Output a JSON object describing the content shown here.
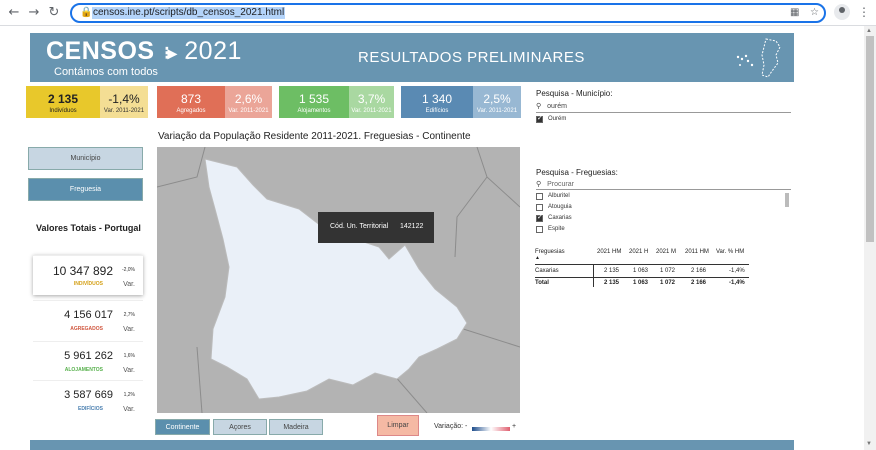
{
  "browser": {
    "url": "censos.ine.pt/scripts/db_censos_2021.html",
    "back_icon": "←",
    "forward_icon": "→",
    "reload_icon": "↻",
    "star_icon": "☆",
    "menu_icon": "⋮"
  },
  "header": {
    "logo": "CENSOS",
    "logo_year": "2021",
    "tagline": "Contámos com todos",
    "title": "RESULTADOS PRELIMINARES"
  },
  "kpis": [
    {
      "value": "2 135",
      "label": "Indivíduos",
      "var": "-1,4%",
      "var_label": "Var. 2011-2021",
      "color_a": "#e8c82b",
      "color_b": "#f4de94"
    },
    {
      "value": "873",
      "label": "Agregados",
      "var": "2,6%",
      "var_label": "Var. 2011-2021",
      "color_a": "#e06f57",
      "color_b": "#eba598"
    },
    {
      "value": "1 535",
      "label": "Alojamentos",
      "var": "3,7%",
      "var_label": "Var. 2011-2021",
      "color_a": "#6dbe64",
      "color_b": "#a9d8a1"
    },
    {
      "value": "1 340",
      "label": "Edifícios",
      "var": "2,5%",
      "var_label": "Var. 2011-2021",
      "color_a": "#5a8ab3",
      "color_b": "#98b8d3"
    }
  ],
  "side": {
    "municipio_btn": "Município",
    "freguesia_btn": "Freguesia",
    "totals_title": "Valores Totais - Portugal",
    "var_label": "Var.",
    "stats": [
      {
        "value": "10 347 892",
        "pct": "-2,0%",
        "label": "INDIVÍDUOS",
        "color": "#d4a017"
      },
      {
        "value": "4 156 017",
        "pct": "2,7%",
        "label": "AGREGADOS",
        "color": "#d0573f"
      },
      {
        "value": "5 961 262",
        "pct": "1,6%",
        "label": "ALOJAMENTOS",
        "color": "#56b04b"
      },
      {
        "value": "3 587 669",
        "pct": "1,2%",
        "label": "EDIFÍCIOS",
        "color": "#4a7fb0"
      }
    ]
  },
  "map": {
    "title": "Variação da População Residente 2011-2021. Freguesias - Continente",
    "tooltip_label": "Cód. Un. Territorial",
    "tooltip_value": "142122"
  },
  "bottom": {
    "continente": "Continente",
    "acores": "Açores",
    "madeira": "Madeira",
    "limpar": "Limpar",
    "variacao": "Variação: -",
    "plus": "+"
  },
  "municipio_search": {
    "title": "Pesquisa - Município:",
    "query": "ourém",
    "items": [
      {
        "label": "Ourém",
        "checked": true
      }
    ]
  },
  "freguesia_search": {
    "title": "Pesquisa - Freguesias:",
    "placeholder": "Procurar",
    "items": [
      {
        "label": "Alburitel",
        "checked": false
      },
      {
        "label": "Atouguia",
        "checked": false
      },
      {
        "label": "Caxarias",
        "checked": true
      },
      {
        "label": "Espite",
        "checked": false
      }
    ]
  },
  "table": {
    "headers": [
      "Freguesias",
      "2021 HM",
      "2021 H",
      "2021 M",
      "2011 HM",
      "Var. % HM"
    ],
    "rows": [
      [
        "Caxarias",
        "2 135",
        "1 063",
        "1 072",
        "2 166",
        "-1,4%"
      ]
    ],
    "total": [
      "Total",
      "2 135",
      "1 063",
      "1 072",
      "2 166",
      "-1,4%"
    ]
  }
}
